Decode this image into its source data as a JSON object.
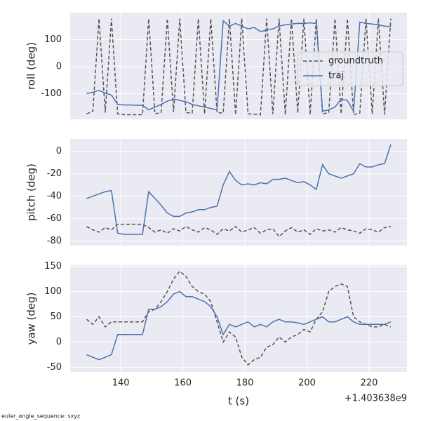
{
  "chart_data": [
    {
      "type": "line",
      "ylabel": "roll (deg)",
      "xlim": [
        123.7,
        232.2
      ],
      "ylim": [
        -195,
        200
      ],
      "yticks": [
        -100,
        0,
        100
      ],
      "grid": true,
      "legend": "center right",
      "x": [
        129,
        131,
        133,
        135,
        137,
        139,
        141,
        143,
        145,
        147,
        149,
        151,
        153,
        155,
        157,
        159,
        161,
        163,
        165,
        167,
        169,
        171,
        173,
        175,
        177,
        179,
        181,
        183,
        185,
        187,
        189,
        191,
        193,
        195,
        197,
        199,
        201,
        203,
        205,
        207,
        209,
        211,
        213,
        215,
        217,
        219,
        221,
        223,
        225,
        227
      ],
      "series": [
        {
          "name": "groundtruth",
          "color": "#555555",
          "dashed": true,
          "values": [
            -175,
            -165,
            178,
            -170,
            178,
            -175,
            -178,
            -178,
            -178,
            -178,
            178,
            -175,
            -170,
            178,
            -168,
            178,
            -170,
            -172,
            178,
            -175,
            178,
            -170,
            -172,
            178,
            -178,
            178,
            -175,
            -176,
            -178,
            178,
            -176,
            178,
            -178,
            178,
            -172,
            178,
            -178,
            178,
            -175,
            -170,
            178,
            -175,
            178,
            -178,
            -172,
            178,
            -175,
            178,
            -178,
            178
          ]
        },
        {
          "name": "traj",
          "color": "#4c72b0",
          "dashed": false,
          "values": [
            -100,
            -95,
            -88,
            -98,
            -105,
            -140,
            -142,
            -142,
            -143,
            -143,
            -160,
            -150,
            -140,
            -128,
            -120,
            -125,
            -130,
            -140,
            -145,
            -150,
            -155,
            -160,
            170,
            150,
            160,
            150,
            140,
            145,
            130,
            135,
            140,
            150,
            155,
            158,
            160,
            160,
            162,
            160,
            -165,
            -160,
            -150,
            -120,
            -125,
            -165,
            165,
            160,
            158,
            155,
            150,
            148
          ]
        }
      ]
    },
    {
      "type": "line",
      "ylabel": "pitch (deg)",
      "xlim": [
        123.7,
        232.2
      ],
      "ylim": [
        -84,
        11
      ],
      "yticks": [
        -80,
        -60,
        -40,
        -20,
        0
      ],
      "grid": true,
      "x": [
        129,
        131,
        133,
        135,
        137,
        139,
        141,
        143,
        145,
        147,
        149,
        151,
        153,
        155,
        157,
        159,
        161,
        163,
        165,
        167,
        169,
        171,
        173,
        175,
        177,
        179,
        181,
        183,
        185,
        187,
        189,
        191,
        193,
        195,
        197,
        199,
        201,
        203,
        205,
        207,
        209,
        211,
        213,
        215,
        217,
        219,
        221,
        223,
        225,
        227
      ],
      "series": [
        {
          "name": "groundtruth",
          "color": "#555555",
          "dashed": true,
          "values": [
            -67,
            -70,
            -72,
            -68,
            -70,
            -65,
            -65,
            -65,
            -65,
            -65,
            -68,
            -72,
            -70,
            -73,
            -69,
            -71,
            -67,
            -70,
            -72,
            -68,
            -70,
            -74,
            -69,
            -71,
            -67,
            -72,
            -70,
            -68,
            -73,
            -70,
            -69,
            -76,
            -71,
            -68,
            -72,
            -70,
            -74,
            -69,
            -71,
            -70,
            -72,
            -68,
            -70,
            -71,
            -73,
            -69,
            -70,
            -72,
            -68,
            -67
          ]
        },
        {
          "name": "traj",
          "color": "#4c72b0",
          "dashed": false,
          "values": [
            -42,
            -40,
            -38,
            -36,
            -35,
            -73,
            -74,
            -74,
            -74,
            -74,
            -36,
            -42,
            -48,
            -55,
            -58,
            -58,
            -55,
            -54,
            -52,
            -52,
            -50,
            -49,
            -30,
            -18,
            -26,
            -30,
            -29,
            -30,
            -28,
            -29,
            -25,
            -25,
            -24,
            -26,
            -28,
            -27,
            -30,
            -34,
            -12,
            -20,
            -22,
            -24,
            -22,
            -20,
            -11,
            -14,
            -14,
            -12,
            -11,
            6
          ]
        }
      ]
    },
    {
      "type": "line",
      "ylabel": "yaw (deg)",
      "xlabel": "t (s)",
      "x_offset_label": "+1.403638e9",
      "xlim": [
        123.7,
        232.2
      ],
      "ylim": [
        -59,
        152
      ],
      "yticks": [
        -50,
        0,
        50,
        100,
        150
      ],
      "xticks": [
        140,
        160,
        180,
        200,
        220
      ],
      "grid": true,
      "x": [
        129,
        131,
        133,
        135,
        137,
        139,
        141,
        143,
        145,
        147,
        149,
        151,
        153,
        155,
        157,
        159,
        161,
        163,
        165,
        167,
        169,
        171,
        173,
        175,
        177,
        179,
        181,
        183,
        185,
        187,
        189,
        191,
        193,
        195,
        197,
        199,
        201,
        203,
        205,
        207,
        209,
        211,
        213,
        215,
        217,
        219,
        221,
        223,
        225,
        227
      ],
      "series": [
        {
          "name": "groundtruth",
          "color": "#555555",
          "dashed": true,
          "values": [
            45,
            35,
            50,
            30,
            40,
            40,
            40,
            40,
            40,
            40,
            60,
            65,
            80,
            100,
            125,
            140,
            130,
            110,
            100,
            95,
            80,
            40,
            0,
            20,
            10,
            -30,
            -45,
            -35,
            -30,
            -10,
            -5,
            10,
            0,
            10,
            15,
            25,
            20,
            45,
            60,
            100,
            110,
            115,
            110,
            50,
            40,
            35,
            30,
            30,
            35,
            30
          ]
        },
        {
          "name": "traj",
          "color": "#4c72b0",
          "dashed": false,
          "values": [
            -25,
            -30,
            -35,
            -30,
            -25,
            15,
            15,
            15,
            15,
            15,
            65,
            65,
            70,
            80,
            95,
            100,
            90,
            90,
            85,
            80,
            70,
            50,
            15,
            35,
            30,
            35,
            40,
            30,
            35,
            30,
            40,
            45,
            40,
            40,
            38,
            35,
            40,
            45,
            50,
            40,
            40,
            45,
            50,
            40,
            35,
            35,
            35,
            35,
            35,
            40
          ]
        }
      ]
    }
  ],
  "footnote": "euler_angle_sequence: sxyz"
}
